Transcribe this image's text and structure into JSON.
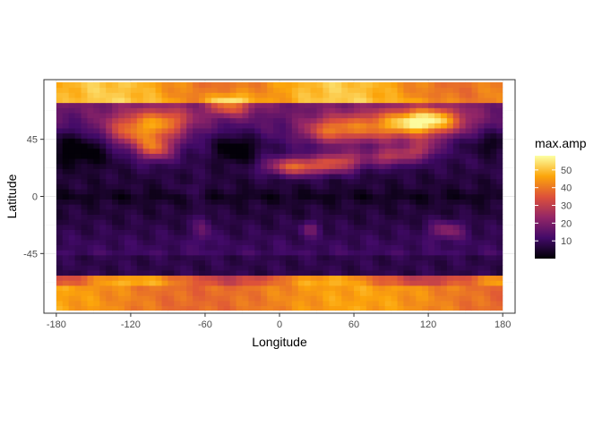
{
  "chart_data": {
    "type": "heatmap",
    "title": "",
    "xlabel": "Longitude",
    "ylabel": "Latitude",
    "xlim": [
      -190,
      190
    ],
    "ylim": [
      -92,
      92
    ],
    "data_extent": {
      "x": [
        -180,
        180
      ],
      "y": [
        -90,
        90
      ]
    },
    "x_ticks": [
      -180,
      -120,
      -60,
      0,
      60,
      120,
      180
    ],
    "x_tick_labels": [
      "-180",
      "-120",
      "-60",
      "0",
      "60",
      "120",
      "180"
    ],
    "y_ticks": [
      -45,
      0,
      45
    ],
    "y_tick_labels": [
      "-45",
      "0",
      "45"
    ],
    "grid": true,
    "legend": {
      "title": "max.amp",
      "position": "right",
      "ticks": [
        10,
        20,
        30,
        40,
        50
      ],
      "tick_labels": [
        "10",
        "20",
        "30",
        "40",
        "50"
      ],
      "range": [
        0,
        58
      ],
      "colors": [
        "#000004",
        "#420a68",
        "#932667",
        "#dd513a",
        "#fca50a",
        "#fcffa4"
      ]
    },
    "colors": {
      "panel_border": "#333333",
      "grid_major": "#ebebeb",
      "grid_minor": "#f5f5f5"
    },
    "value_summary": {
      "arctic": 45,
      "north_pacific": 15,
      "north_america": 35,
      "north_atlantic": 12,
      "europe": 30,
      "siberia": 48,
      "sahara": 38,
      "equator": 3,
      "southern_ocean": 5,
      "antarctica": 42
    }
  }
}
